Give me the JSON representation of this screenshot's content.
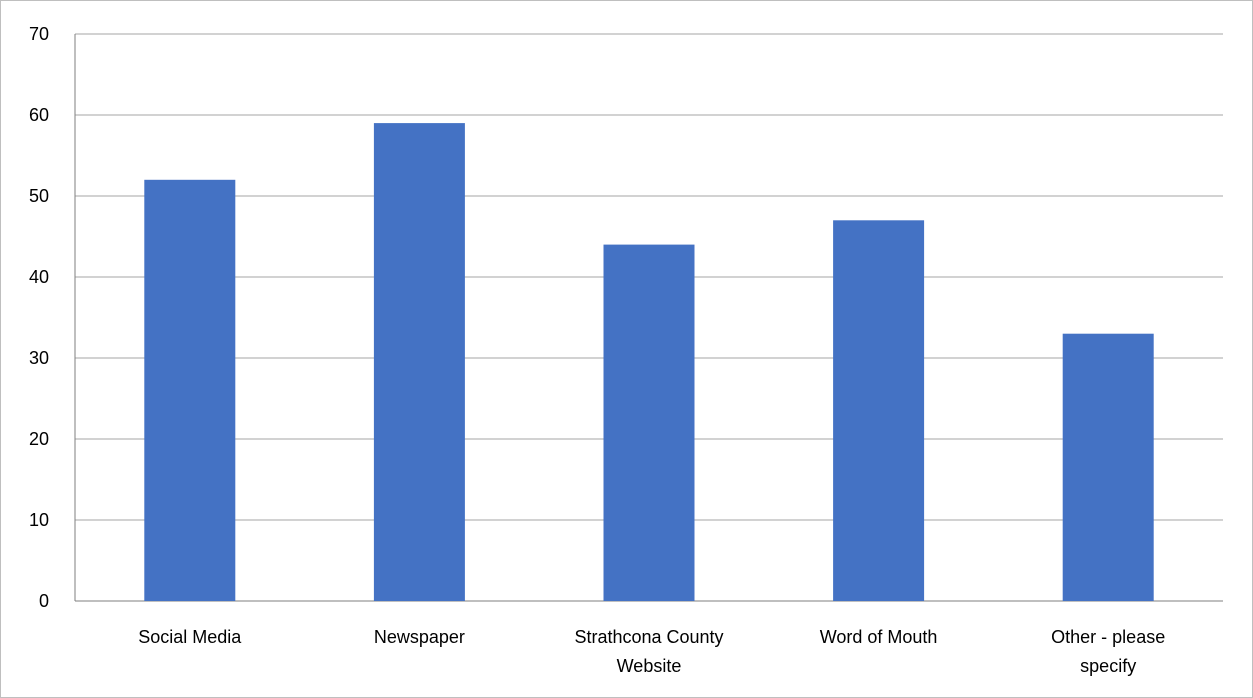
{
  "chart_data": {
    "type": "bar",
    "categories": [
      "Social Media",
      "Newspaper",
      "Strathcona County Website",
      "Word of Mouth",
      "Other - please specify"
    ],
    "category_label_lines": [
      [
        "Social Media"
      ],
      [
        "Newspaper"
      ],
      [
        "Strathcona County",
        "Website"
      ],
      [
        "Word of Mouth"
      ],
      [
        "Other - please",
        "specify"
      ]
    ],
    "values": [
      52,
      59,
      44,
      47,
      33
    ],
    "title": "",
    "xlabel": "",
    "ylabel": "",
    "ylim": [
      0,
      70
    ],
    "yticks": [
      0,
      10,
      20,
      30,
      40,
      50,
      60,
      70
    ],
    "grid": true,
    "legend": "none",
    "colors": {
      "bar": "#4472c4",
      "grid": "#a6a6a6",
      "axis": "#7f7f7f"
    }
  }
}
